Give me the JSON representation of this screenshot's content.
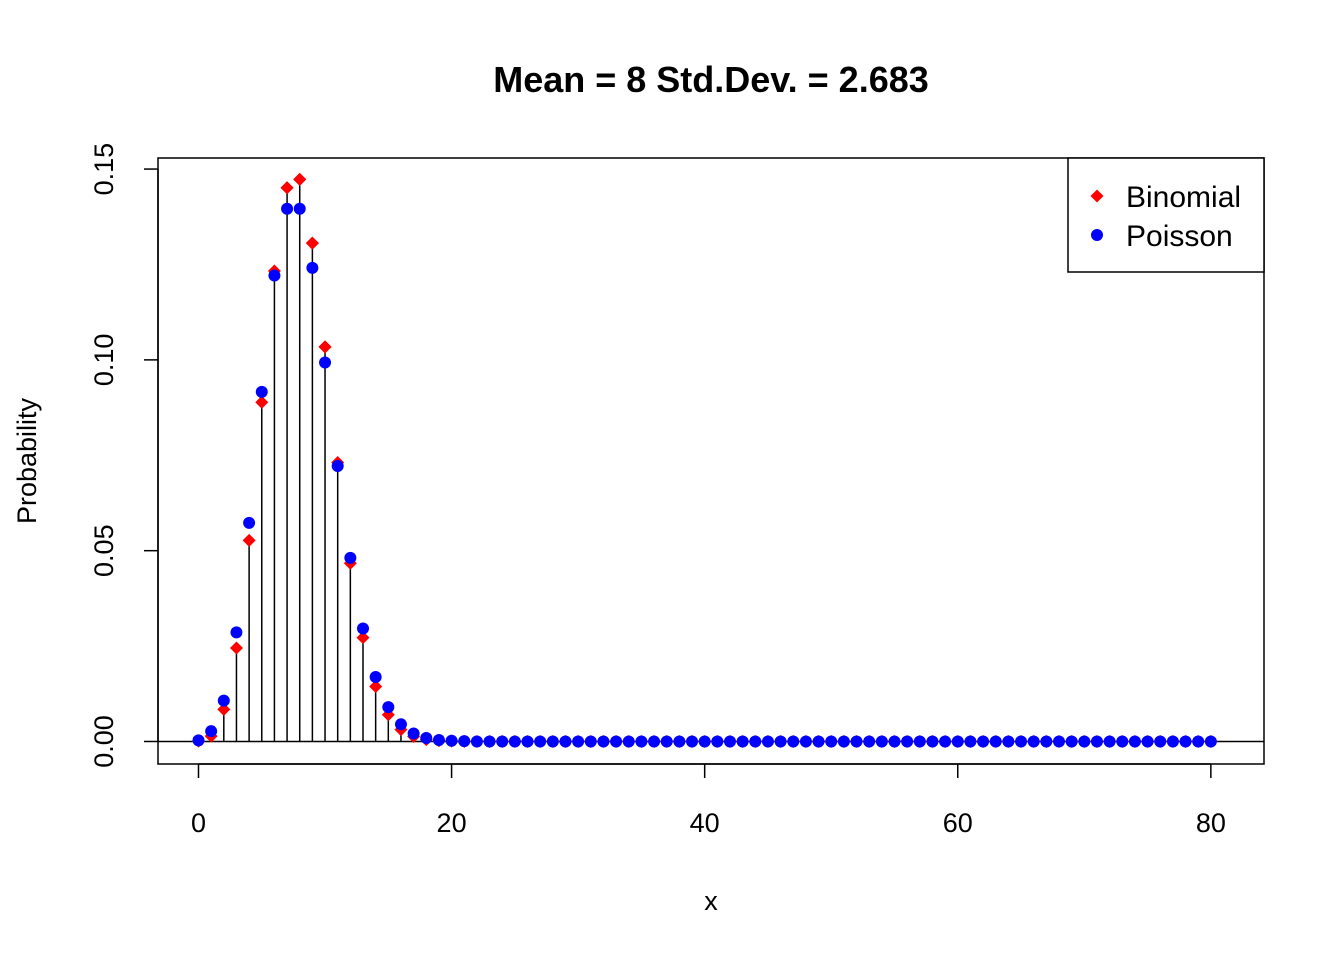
{
  "chart_data": {
    "type": "scatter",
    "title": "Mean = 8 Std.Dev. = 2.683",
    "xlabel": "x",
    "ylabel": "Probability",
    "xlim": [
      -3.2,
      84.2
    ],
    "ylim": [
      -0.0059,
      0.1529
    ],
    "x_ticks": [
      0,
      20,
      40,
      60,
      80
    ],
    "x_tick_labels": [
      "0",
      "20",
      "40",
      "60",
      "80"
    ],
    "y_ticks": [
      0.0,
      0.05,
      0.1,
      0.15
    ],
    "y_tick_labels": [
      "0.00",
      "0.05",
      "0.10",
      "0.15"
    ],
    "grid": false,
    "reference_line_y": 0,
    "legend_position": "top-right",
    "x": [
      0,
      1,
      2,
      3,
      4,
      5,
      6,
      7,
      8,
      9,
      10,
      11,
      12,
      13,
      14,
      15,
      16,
      17,
      18,
      19,
      20,
      21,
      22,
      23,
      24,
      25,
      26,
      27,
      28,
      29,
      30,
      31,
      32,
      33,
      34,
      35,
      36,
      37,
      38,
      39,
      40,
      41,
      42,
      43,
      44,
      45,
      46,
      47,
      48,
      49,
      50,
      51,
      52,
      53,
      54,
      55,
      56,
      57,
      58,
      59,
      60,
      61,
      62,
      63,
      64,
      65,
      66,
      67,
      68,
      69,
      70,
      71,
      72,
      73,
      74,
      75,
      76,
      77,
      78,
      79,
      80
    ],
    "series": [
      {
        "name": "Binomial",
        "marker": "diamond",
        "color": "#ff0000",
        "draw_stems": true,
        "values": [
          0.0001,
          0.0014,
          0.0084,
          0.0245,
          0.0527,
          0.0889,
          0.1233,
          0.1451,
          0.1473,
          0.1306,
          0.1034,
          0.0731,
          0.0467,
          0.0272,
          0.0144,
          0.007,
          0.0031,
          0.0013,
          0.0005,
          0.0002,
          0.0001,
          0,
          0,
          0,
          0,
          0,
          0,
          0,
          0,
          0,
          0,
          0,
          0,
          0,
          0,
          0,
          0,
          0,
          0,
          0,
          0,
          0,
          0,
          0,
          0,
          0,
          0,
          0,
          0,
          0,
          0,
          0,
          0,
          0,
          0,
          0,
          0,
          0,
          0,
          0,
          0,
          0,
          0,
          0,
          0,
          0,
          0,
          0,
          0,
          0,
          0,
          0,
          0,
          0,
          0,
          0,
          0,
          0,
          0,
          0,
          0
        ]
      },
      {
        "name": "Poisson",
        "marker": "circle",
        "color": "#0000ff",
        "values": [
          0.0003,
          0.0027,
          0.0107,
          0.0286,
          0.0573,
          0.0916,
          0.1221,
          0.1396,
          0.1396,
          0.1241,
          0.0993,
          0.0722,
          0.0481,
          0.0296,
          0.0169,
          0.009,
          0.0045,
          0.0021,
          0.0009,
          0.0004,
          0.0002,
          0.0001,
          0,
          0,
          0,
          0,
          0,
          0,
          0,
          0,
          0,
          0,
          0,
          0,
          0,
          0,
          0,
          0,
          0,
          0,
          0,
          0,
          0,
          0,
          0,
          0,
          0,
          0,
          0,
          0,
          0,
          0,
          0,
          0,
          0,
          0,
          0,
          0,
          0,
          0,
          0,
          0,
          0,
          0,
          0,
          0,
          0,
          0,
          0,
          0,
          0,
          0,
          0,
          0,
          0,
          0,
          0,
          0,
          0,
          0,
          0
        ]
      }
    ]
  }
}
